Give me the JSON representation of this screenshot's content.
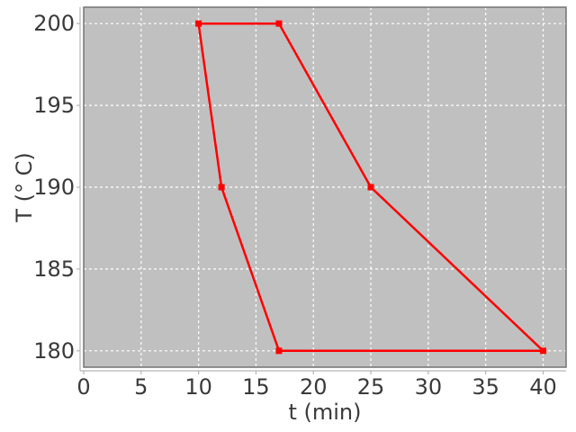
{
  "figure": {
    "background": "#ffffff"
  },
  "chart_data": {
    "type": "line",
    "title": "",
    "xlabel": "t (min)",
    "ylabel": "T (° C)",
    "xlim": [
      0,
      42
    ],
    "ylim": [
      179,
      201
    ],
    "x_ticks": [
      0,
      5,
      10,
      15,
      20,
      25,
      30,
      35,
      40
    ],
    "y_ticks": [
      180,
      185,
      190,
      195,
      200
    ],
    "grid": "on",
    "grid_style": "dashed",
    "legend": "none",
    "series": [
      {
        "name": "temperature-time-cycle",
        "marker": "filled-square",
        "closed_loop": true,
        "points": [
          [
            10,
            200
          ],
          [
            17,
            200
          ],
          [
            25,
            190
          ],
          [
            40,
            180
          ],
          [
            17,
            180
          ],
          [
            12,
            190
          ],
          [
            10,
            200
          ]
        ]
      }
    ],
    "colors": {
      "series": "#fe0000",
      "plot_background": "#c0c0c0",
      "gridline": "#ffffff",
      "plot_border": "#737373",
      "axis_line": "#b3b3b3",
      "tick_mark": "#b3b3b3",
      "label_text": "#3a3a3a"
    }
  }
}
